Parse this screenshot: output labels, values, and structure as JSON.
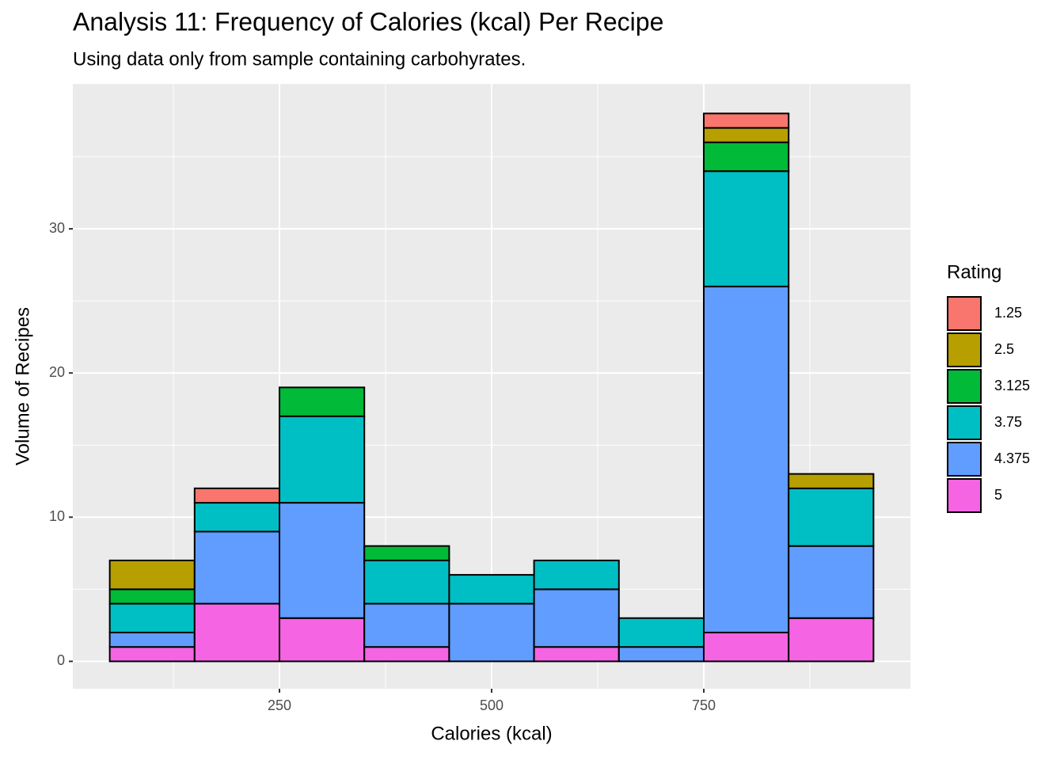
{
  "chart_data": {
    "type": "histogram",
    "title": "Analysis 11: Frequency of Calories (kcal) Per Recipe",
    "subtitle": "Using data only from sample containing carbohyrates.",
    "x_label": "Calories (kcal)",
    "y_label": "Volume of Recipes",
    "legend_title": "Rating",
    "legend_position": "right",
    "grid": true,
    "stacked": true,
    "bins": [
      50,
      150,
      250,
      350,
      450,
      550,
      650,
      750,
      850,
      950
    ],
    "series": [
      {
        "name": "1.25",
        "color": "#F8766D",
        "values": [
          0,
          1,
          0,
          0,
          0,
          0,
          0,
          1,
          0
        ]
      },
      {
        "name": "2.5",
        "color": "#B79F00",
        "values": [
          2,
          0,
          0,
          0,
          0,
          0,
          0,
          1,
          1
        ]
      },
      {
        "name": "3.125",
        "color": "#00BA38",
        "values": [
          1,
          0,
          2,
          1,
          0,
          0,
          0,
          2,
          0
        ]
      },
      {
        "name": "3.75",
        "color": "#00BFC4",
        "values": [
          2,
          2,
          6,
          3,
          2,
          2,
          2,
          8,
          4
        ]
      },
      {
        "name": "4.375",
        "color": "#619CFF",
        "values": [
          1,
          5,
          8,
          3,
          4,
          4,
          1,
          24,
          5
        ]
      },
      {
        "name": "5",
        "color": "#F564E3",
        "values": [
          1,
          4,
          3,
          1,
          0,
          1,
          0,
          2,
          3
        ]
      }
    ],
    "xlim": [
      6.5,
      993.5
    ],
    "ylim": [
      -1.9,
      40.05
    ],
    "xticks": [
      250,
      500,
      750
    ],
    "yticks": [
      0,
      10,
      20,
      30
    ]
  }
}
